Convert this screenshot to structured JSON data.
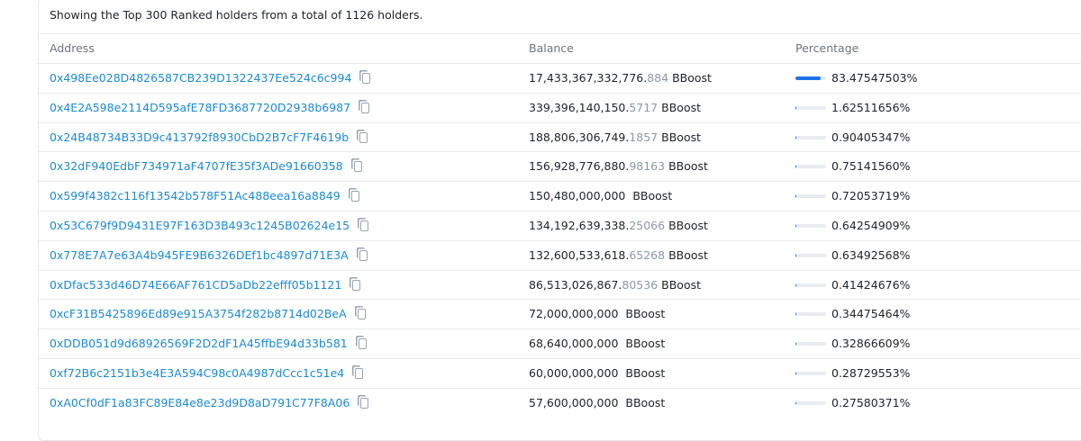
{
  "header": {
    "text": "Showing the Top 300 Ranked holders from a total of 1126 holders."
  },
  "table": {
    "columns": [
      "Address",
      "Balance",
      "Percentage"
    ],
    "rows": [
      {
        "address": "0x498Ee028D4826587CB239D1322437Ee524c6c994",
        "balance": "17,433,367,332,776.",
        "fraction": "884",
        "token": "BBoost",
        "percentage": {
          "value": 83.47547503,
          "label": "83.47547503%"
        }
      },
      {
        "address": "0x4E2A598e2114D595afE78FD3687720D2938b6987",
        "balance": "339,396,140,150.",
        "fraction": "5717",
        "token": "BBoost",
        "percentage": {
          "value": 1.62511656,
          "label": "1.62511656%"
        }
      },
      {
        "address": "0x24B48734B33D9c413792f8930CbD2B7cF7F4619b",
        "balance": "188,806,306,749.",
        "fraction": "1857",
        "token": "BBoost",
        "percentage": {
          "value": 0.90405347,
          "label": "0.90405347%"
        }
      },
      {
        "address": "0x32dF940EdbF734971aF4707fE35f3ADe91660358",
        "balance": "156,928,776,880.",
        "fraction": "98163",
        "token": "BBoost",
        "percentage": {
          "value": 0.7514156,
          "label": "0.75141560%"
        }
      },
      {
        "address": "0x599f4382c116f13542b578F51Ac488eea16a8849",
        "balance": "150,480,000,000",
        "token": "BBoost",
        "percentage": {
          "value": 0.72053719,
          "label": "0.72053719%"
        }
      },
      {
        "address": "0x53C679f9D9431E97F163D3B493c1245B02624e15",
        "balance": "134,192,639,338.",
        "fraction": "25066",
        "token": "BBoost",
        "percentage": {
          "value": 0.64254909,
          "label": "0.64254909%"
        }
      },
      {
        "address": "0x778E7A7e63A4b945FE9B6326DEf1bc4897d71E3A",
        "balance": "132,600,533,618.",
        "fraction": "65268",
        "token": "BBoost",
        "percentage": {
          "value": 0.63492568,
          "label": "0.63492568%"
        }
      },
      {
        "address": "0xDfac533d46D74E66AF761CD5aDb22efff05b1121",
        "balance": "86,513,026,867.",
        "fraction": "80536",
        "token": "BBoost",
        "percentage": {
          "value": 0.41424676,
          "label": "0.41424676%"
        }
      },
      {
        "address": "0xcF31B5425896Ed89e915A3754f282b8714d02BeA",
        "balance": "72,000,000,000",
        "token": "BBoost",
        "percentage": {
          "value": 0.34475464,
          "label": "0.34475464%"
        }
      },
      {
        "address": "0xDDB051d9d68926569F2D2dF1A45ffbE94d33b581",
        "balance": "68,640,000,000",
        "token": "BBoost",
        "percentage": {
          "value": 0.32866609,
          "label": "0.32866609%"
        }
      },
      {
        "address": "0xf72B6c2151b3e4E3A594C98c0A4987dCcc1c51e4",
        "balance": "60,000,000,000",
        "token": "BBoost",
        "percentage": {
          "value": 0.28729553,
          "label": "0.28729553%"
        }
      },
      {
        "address": "0xA0Cf0dF1a83FC89E84e8e23d9D8aD791C77F8A06",
        "balance": "57,600,000,000",
        "token": "BBoost",
        "percentage": {
          "value": 0.27580371,
          "label": "0.27580371%"
        }
      }
    ]
  }
}
